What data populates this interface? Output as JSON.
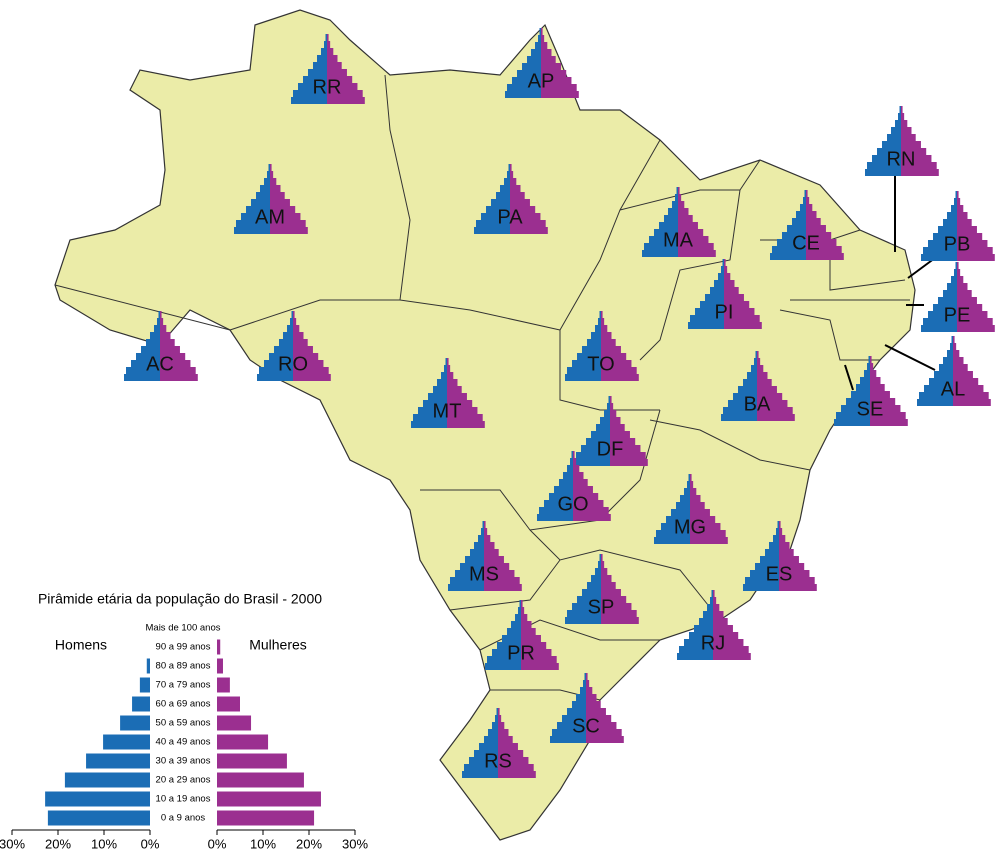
{
  "map": {
    "states": [
      "RR",
      "AP",
      "AM",
      "PA",
      "MA",
      "CE",
      "RN",
      "PB",
      "PE",
      "AL",
      "AC",
      "RO",
      "TO",
      "PI",
      "BA",
      "MT",
      "DF",
      "SE",
      "GO",
      "MG",
      "ES",
      "MS",
      "SP",
      "RJ",
      "PR",
      "SC",
      "RS"
    ]
  },
  "chart_data": {
    "type": "bar",
    "title": "Pirâmide etária da população do Brasil - 2000",
    "categories": [
      "Mais de 100 anos",
      "90 a 99 anos",
      "80 a 89 anos",
      "70 a 79 anos",
      "60 a 69 anos",
      "50 a 59 anos",
      "40 a 49 anos",
      "30 a 39 anos",
      "20 a 29 anos",
      "10 a 19 anos",
      "0 a 9 anos"
    ],
    "series": [
      {
        "name": "Homens",
        "color": "#1b6db5",
        "values": [
          0,
          0,
          0.7,
          2.2,
          3.9,
          6.5,
          10.2,
          13.9,
          18.5,
          22.8,
          22.2
        ]
      },
      {
        "name": "Mulheres",
        "color": "#9b2f90",
        "values": [
          0,
          0.7,
          1.3,
          2.8,
          5.0,
          7.4,
          11.1,
          15.2,
          18.9,
          22.6,
          21.1
        ]
      }
    ],
    "xlim": [
      0,
      30
    ],
    "xticks": [
      {
        "value": 0,
        "label": "0%"
      },
      {
        "value": 10,
        "label": "10%"
      },
      {
        "value": 20,
        "label": "20%"
      },
      {
        "value": 30,
        "label": "30%"
      }
    ]
  }
}
